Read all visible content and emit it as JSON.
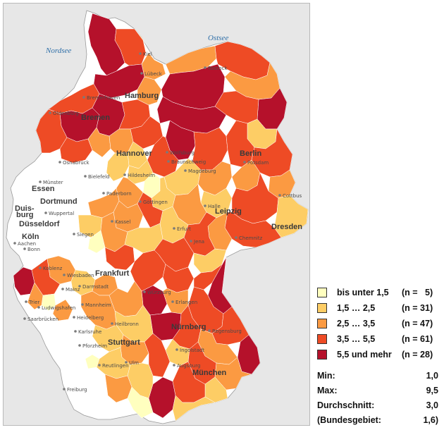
{
  "map": {
    "seas": {
      "north": "Nordsee",
      "baltic": "Ostsee"
    },
    "cities_major": [
      "Hamburg",
      "Bremen",
      "Hannover",
      "Berlin",
      "Leipzig",
      "Dresden",
      "Dortmund",
      "Essen",
      "Duis-",
      "burg",
      "Düsseldorf",
      "Köln",
      "Frankfurt",
      "Nürnberg",
      "Stuttgart",
      "München"
    ],
    "cities_minor": [
      "Kiel",
      "Lübeck",
      "Rostock",
      "Bremerhaven",
      "Oldenburg",
      "Osnabrück",
      "Wolfsburg",
      "Braunschweig",
      "Münster",
      "Bielefeld",
      "Hildesheim",
      "Magdeburg",
      "Potsdam",
      "Cottbus",
      "Paderborn",
      "Göttingen",
      "Halle",
      "Wuppertal",
      "Kassel",
      "Erfurt",
      "Jena",
      "Chemnitz",
      "Siegen",
      "Bonn",
      "Aachen",
      "Koblenz",
      "Wiesbaden",
      "Mainz",
      "Darmstadt",
      "Würzburg",
      "Trier",
      "Ludwigshafen",
      "Mannheim",
      "Erlangen",
      "Saarbrücken",
      "Heidelberg",
      "Heilbronn",
      "Regensburg",
      "Karlsruhe",
      "Pforzheim",
      "Ingolstadt",
      "Reutlingen",
      "Ulm",
      "Augsburg",
      "Freiburg"
    ]
  },
  "legend": {
    "colors": {
      "c1": "#ffffbf",
      "c2": "#fdcd65",
      "c3": "#fb9a42",
      "c4": "#ee4b25",
      "c5": "#b5112b"
    },
    "items": [
      {
        "label": "bis unter 1,5",
        "count": "(n =   5)",
        "color": "#ffffbf"
      },
      {
        "label": "1,5 … 2,5",
        "count": "(n = 31)",
        "color": "#fdcd65"
      },
      {
        "label": "2,5 … 3,5",
        "count": "(n = 47)",
        "color": "#fb9a42"
      },
      {
        "label": "3,5 … 5,5",
        "count": "(n = 61)",
        "color": "#ee4b25"
      },
      {
        "label": "5,5 und mehr",
        "count": "(n = 28)",
        "color": "#b5112b"
      }
    ]
  },
  "stats": {
    "min_label": "Min:",
    "min_value": "1,0",
    "max_label": "Max:",
    "max_value": "9,5",
    "avg_label": "Durchschnitt:",
    "avg_value": "3,0",
    "federal_label": "(Bundesgebiet:",
    "federal_value": "1,6)"
  }
}
